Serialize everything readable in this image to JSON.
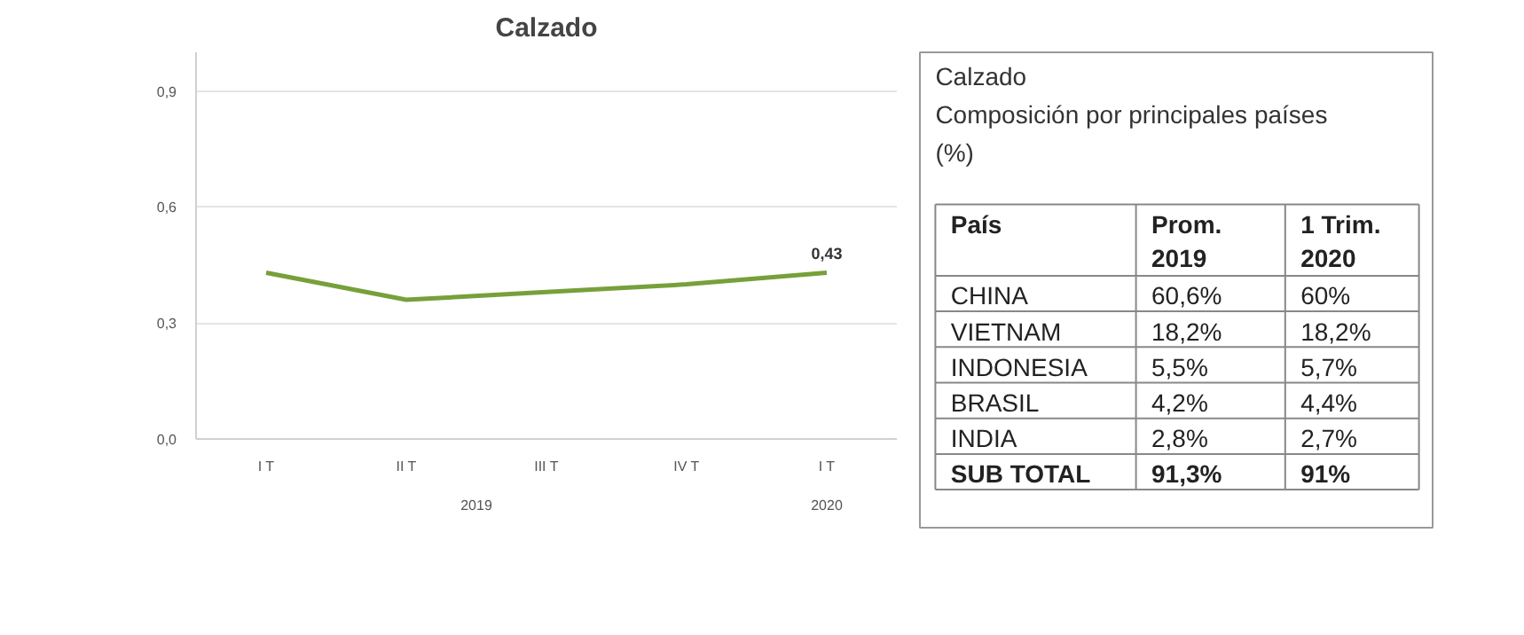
{
  "chart_data": [
    {
      "type": "line",
      "title": "Calzado",
      "categories": [
        "I T",
        "II T",
        "III T",
        "IV T",
        "I T"
      ],
      "series": [
        {
          "color": "#77a03a",
          "values": [
            0.43,
            0.36,
            0.38,
            0.4,
            0.43
          ],
          "value_labels": [
            null,
            null,
            null,
            null,
            "0,43"
          ]
        }
      ],
      "annotations": [
        "2019",
        "2020"
      ],
      "ylim": [
        0,
        1.0
      ],
      "yticks": [
        {
          "value": 0,
          "label": "0,0"
        },
        {
          "value": 0.3,
          "label": "0,3"
        },
        {
          "value": 0.6,
          "label": "0,6"
        },
        {
          "value": 0.9,
          "label": "0,9"
        }
      ],
      "grid": "y",
      "line_style": "solid"
    },
    {
      "type": "other",
      "title": "Calzado",
      "subtitle": "Composición por principales países (%)",
      "annotations": [
        "País",
        "Prom.\n2019",
        "1 Trim.\n2020",
        "CHINA",
        "60,6%",
        "60%",
        "VIETNAM",
        "18,2%",
        "18,2%",
        "INDONESIA",
        "5,5%",
        "5,7%",
        "BRASIL",
        "4,2%",
        "4,4%",
        "INDIA",
        "2,8%",
        "2,7%",
        "SUB TOTAL",
        "91,3%",
        "91%"
      ]
    }
  ]
}
